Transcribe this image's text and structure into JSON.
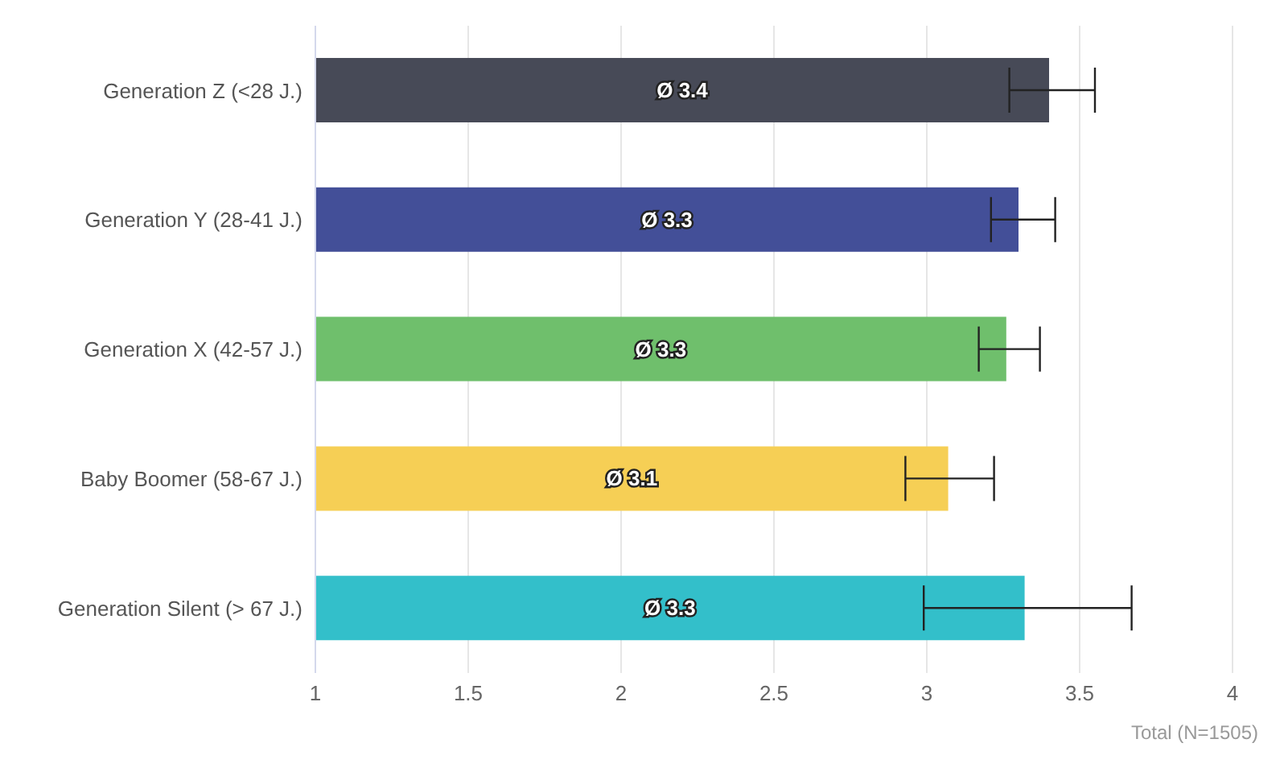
{
  "chart_data": {
    "type": "bar",
    "orientation": "horizontal",
    "xlabel": "Total (N=1505)",
    "categories": [
      "Generation Z (<28 J.)",
      "Generation Y (28-41 J.)",
      "Generation X (42-57 J.)",
      "Baby Boomer (58-67 J.)",
      "Generation Silent (> 67 J.)"
    ],
    "values": [
      3.4,
      3.3,
      3.26,
      3.07,
      3.32
    ],
    "colors": [
      "#474a57",
      "#434f98",
      "#6fbf6c",
      "#f6cf55",
      "#33bfca"
    ],
    "errors": [
      [
        3.27,
        3.55
      ],
      [
        3.21,
        3.42
      ],
      [
        3.17,
        3.37
      ],
      [
        2.93,
        3.22
      ],
      [
        2.99,
        3.67
      ]
    ],
    "value_labels": [
      "Ø 3.4",
      "Ø 3.3",
      "Ø 3.3",
      "Ø 3.1",
      "Ø 3.3"
    ],
    "xlim": [
      1,
      4
    ],
    "xticks": [
      1,
      1.5,
      2,
      2.5,
      3,
      3.5,
      4
    ],
    "grid": "x"
  }
}
